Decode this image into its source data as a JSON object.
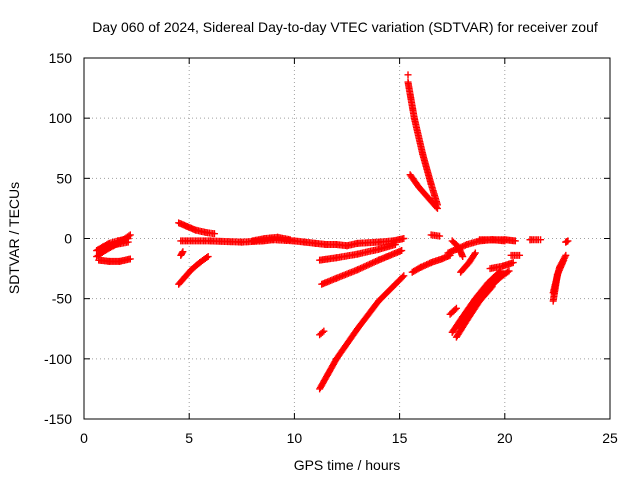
{
  "chart_data": {
    "type": "scatter",
    "title": "Day 060 of 2024, Sidereal Day-to-day VTEC variation (SDTVAR) for receiver zouf",
    "xlabel": "GPS time / hours",
    "ylabel": "SDTVAR / TECUs",
    "xlim": [
      0,
      25
    ],
    "ylim": [
      -150,
      150
    ],
    "xticks": [
      0,
      5,
      10,
      15,
      20,
      25
    ],
    "yticks": [
      -150,
      -100,
      -50,
      0,
      50,
      100,
      150
    ],
    "grid": true,
    "marker": "plus",
    "color": "#ff0000",
    "segments": [
      {
        "x": [
          0.6,
          0.9,
          1.2,
          1.6,
          2.1
        ],
        "y": [
          -10,
          -7,
          -4,
          -2,
          0
        ]
      },
      {
        "x": [
          0.6,
          1.0,
          1.5,
          2.1
        ],
        "y": [
          -15,
          -10,
          -5,
          -3
        ]
      },
      {
        "x": [
          0.7,
          1.2,
          1.7,
          2.2
        ],
        "y": [
          -18,
          -19,
          -19,
          -17
        ]
      },
      {
        "x": [
          1.4,
          1.8,
          2.2
        ],
        "y": [
          -6,
          -2,
          3
        ]
      },
      {
        "x": [
          4.5,
          4.9,
          5.3,
          5.8,
          6.2
        ],
        "y": [
          13,
          10,
          7,
          5,
          4
        ]
      },
      {
        "x": [
          4.5,
          4.8,
          5.1,
          5.5,
          5.9
        ],
        "y": [
          -38,
          -32,
          -26,
          -20,
          -15
        ]
      },
      {
        "x": [
          4.6,
          4.7
        ],
        "y": [
          -14,
          -11
        ]
      },
      {
        "x": [
          4.6,
          6,
          7.5,
          8.5,
          9,
          10,
          10.5,
          11,
          11.5,
          12,
          12.5,
          13,
          14,
          14.7,
          15.2
        ],
        "y": [
          -2,
          -2,
          -3,
          -2,
          -1,
          -2,
          -3,
          -4,
          -5,
          -5,
          -6,
          -4,
          -3,
          -2,
          0
        ]
      },
      {
        "x": [
          8,
          8.6,
          9.2,
          9.8
        ],
        "y": [
          -2,
          0,
          1,
          -1
        ]
      },
      {
        "x": [
          11.2,
          12,
          13,
          14,
          14.8
        ],
        "y": [
          -18,
          -16,
          -13,
          -9,
          -5
        ]
      },
      {
        "x": [
          11.3,
          12,
          13,
          14,
          15.1
        ],
        "y": [
          -38,
          -33,
          -26,
          -18,
          -10
        ]
      },
      {
        "x": [
          11.2,
          11.4
        ],
        "y": [
          -80,
          -77
        ]
      },
      {
        "x": [
          11.2,
          12,
          13,
          14,
          14.8,
          15.2
        ],
        "y": [
          -125,
          -100,
          -75,
          -52,
          -38,
          -31
        ]
      },
      {
        "x": [
          15.4,
          15.7,
          16.1,
          16.5,
          16.8
        ],
        "y": [
          130,
          100,
          70,
          45,
          28
        ]
      },
      {
        "x": [
          15.5,
          15.9,
          16.4,
          16.8
        ],
        "y": [
          53,
          43,
          33,
          25
        ]
      },
      {
        "x": [
          15.6,
          16.0,
          16.5,
          17.0,
          17.4
        ],
        "y": [
          -28,
          -24,
          -20,
          -17,
          -14
        ]
      },
      {
        "x": [
          16.5,
          16.9
        ],
        "y": [
          3,
          2
        ]
      },
      {
        "x": [
          17.3,
          17.7,
          18.2,
          18.8,
          19.4,
          20.0
        ],
        "y": [
          -12,
          -9,
          -5,
          -2,
          -1,
          -2
        ]
      },
      {
        "x": [
          17.5,
          17.8,
          18.0
        ],
        "y": [
          -2,
          -7,
          -15
        ]
      },
      {
        "x": [
          17.9,
          18.3,
          18.6
        ],
        "y": [
          -28,
          -20,
          -12
        ]
      },
      {
        "x": [
          17.4,
          17.7
        ],
        "y": [
          -63,
          -58
        ]
      },
      {
        "x": [
          17.5,
          18,
          18.6,
          19.2,
          19.8
        ],
        "y": [
          -78,
          -65,
          -50,
          -37,
          -27
        ]
      },
      {
        "x": [
          17.7,
          18.2,
          18.8,
          19.4
        ],
        "y": [
          -82,
          -68,
          -52,
          -40
        ]
      },
      {
        "x": [
          17.8,
          18.3,
          18.9,
          19.5
        ],
        "y": [
          -72,
          -58,
          -44,
          -33
        ]
      },
      {
        "x": [
          18.0,
          18.6,
          19.2,
          19.8,
          20.2
        ],
        "y": [
          -70,
          -55,
          -42,
          -32,
          -27
        ]
      },
      {
        "x": [
          19.3,
          19.9,
          20.4
        ],
        "y": [
          -25,
          -23,
          -20
        ]
      },
      {
        "x": [
          20.3,
          20.7
        ],
        "y": [
          -14,
          -14
        ]
      },
      {
        "x": [
          18.8,
          19.4,
          20.0,
          20.5
        ],
        "y": [
          -1,
          -1,
          -1,
          -2
        ]
      },
      {
        "x": [
          21.2,
          21.6
        ],
        "y": [
          -1,
          -1
        ]
      },
      {
        "x": [
          22.3,
          22.5,
          22.8
        ],
        "y": [
          -52,
          -30,
          -18
        ]
      },
      {
        "x": [
          22.3,
          22.6,
          22.9
        ],
        "y": [
          -45,
          -24,
          -14
        ]
      },
      {
        "x": [
          22.9,
          23.0
        ],
        "y": [
          -3,
          -2
        ]
      }
    ],
    "points": [
      {
        "x": 21.2,
        "y": -1
      },
      {
        "x": 21.7,
        "y": -1
      },
      {
        "x": 22.9,
        "y": -3
      },
      {
        "x": 15.4,
        "y": 136
      }
    ]
  }
}
